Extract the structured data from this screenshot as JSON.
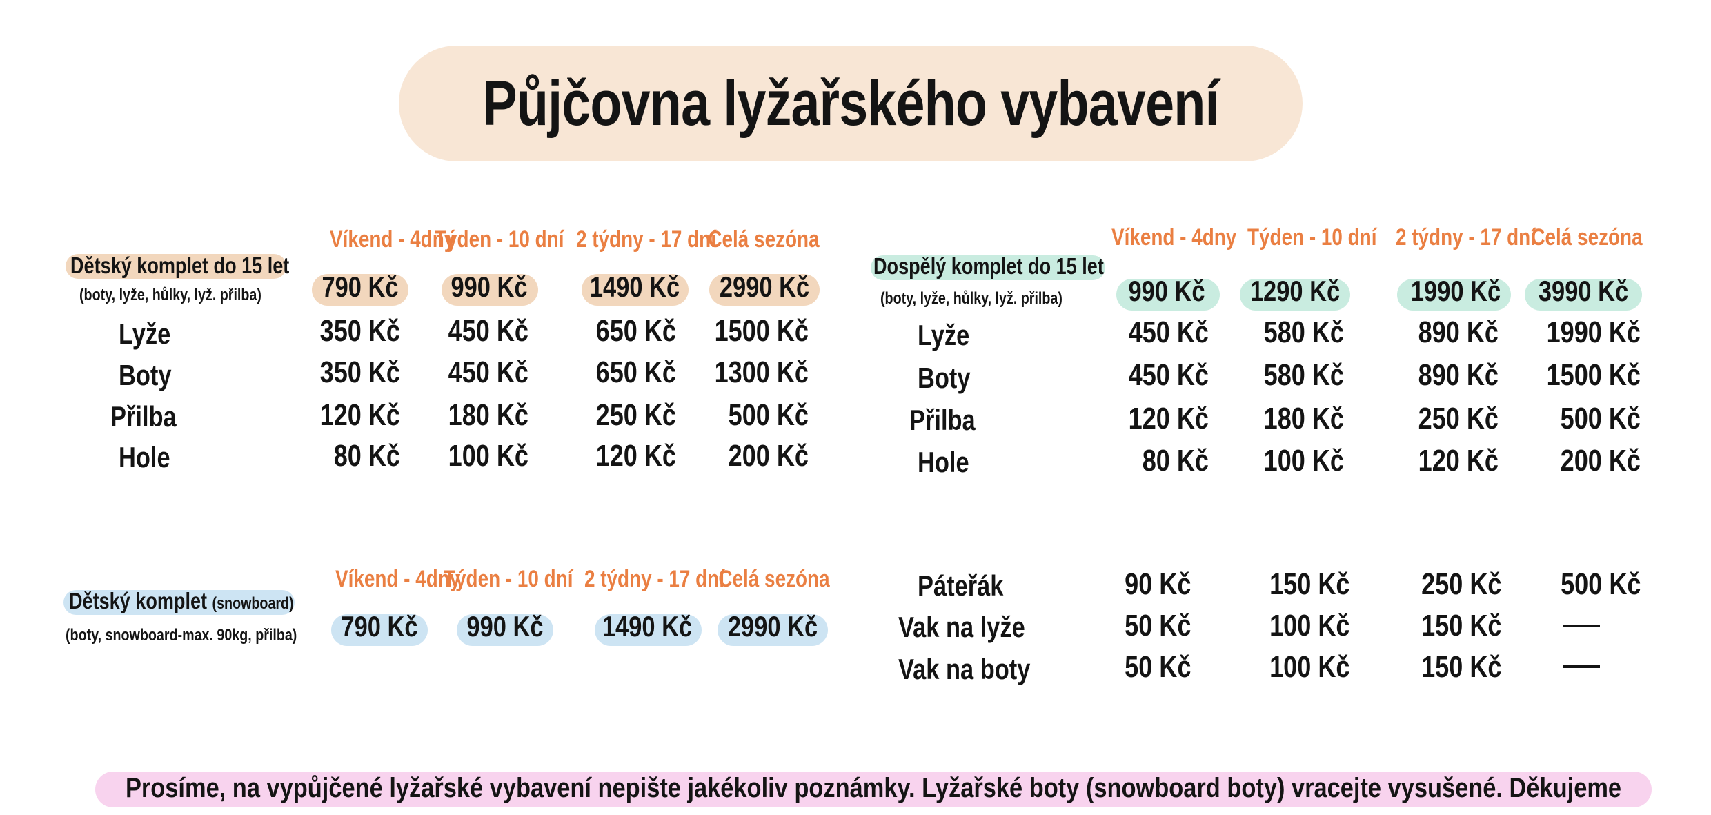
{
  "title": "Půjčovna lyžařského vybavení",
  "kids_ski": {
    "headers": [
      "Víkend - 4dny",
      "Týden - 10 dní",
      "2 týdny - 17 dní",
      "Celá sezóna"
    ],
    "label": "Dětský komplet do 15 let",
    "sublabel": "(boty, lyže, hůlky, lyž. přilba)",
    "package_prices": [
      "790 Kč",
      "990 Kč",
      "1490 Kč",
      "2990 Kč"
    ],
    "items": [
      {
        "label": "Lyže",
        "prices": [
          "350 Kč",
          "450 Kč",
          "650 Kč",
          "1500 Kč"
        ]
      },
      {
        "label": "Boty",
        "prices": [
          "350 Kč",
          "450 Kč",
          "650 Kč",
          "1300 Kč"
        ]
      },
      {
        "label": "Přilba",
        "prices": [
          "120 Kč",
          "180 Kč",
          "250 Kč",
          "500 Kč"
        ]
      },
      {
        "label": "Hole",
        "prices": [
          "80 Kč",
          "100 Kč",
          "120 Kč",
          "200 Kč"
        ]
      }
    ],
    "highlight_color": "#f2d7bd"
  },
  "adult_ski": {
    "headers": [
      "Víkend - 4dny",
      "Týden - 10 dní",
      "2 týdny - 17 dní",
      "Celá sezóna"
    ],
    "label": "Dospělý komplet do 15 let",
    "sublabel": "(boty, lyže, hůlky, lyž. přilba)",
    "package_prices": [
      "990 Kč",
      "1290 Kč",
      "1990 Kč",
      "3990 Kč"
    ],
    "items": [
      {
        "label": "Lyže",
        "prices": [
          "450 Kč",
          "580 Kč",
          "890 Kč",
          "1990 Kč"
        ]
      },
      {
        "label": "Boty",
        "prices": [
          "450 Kč",
          "580 Kč",
          "890 Kč",
          "1500 Kč"
        ]
      },
      {
        "label": "Přilba",
        "prices": [
          "120 Kč",
          "180 Kč",
          "250 Kč",
          "500 Kč"
        ]
      },
      {
        "label": "Hole",
        "prices": [
          "80 Kč",
          "100 Kč",
          "120 Kč",
          "200 Kč"
        ]
      }
    ],
    "highlight_color": "#c9ece0"
  },
  "kids_snowboard": {
    "headers": [
      "Víkend - 4dny",
      "Týden - 10 dní",
      "2 týdny - 17 dní",
      "Celá sezóna"
    ],
    "label": "Dětský komplet",
    "label_suffix": "(snowboard)",
    "sublabel": "(boty, snowboard-max. 90kg, přilba)",
    "package_prices": [
      "790 Kč",
      "990 Kč",
      "1490 Kč",
      "2990 Kč"
    ],
    "highlight_color": "#cde4f3"
  },
  "accessories": {
    "items": [
      {
        "label": "Páteřák",
        "prices": [
          "90 Kč",
          "150 Kč",
          "250 Kč",
          "500 Kč"
        ]
      },
      {
        "label": "Vak na lyže",
        "prices": [
          "50 Kč",
          "100 Kč",
          "150 Kč",
          "—"
        ]
      },
      {
        "label": "Vak na boty",
        "prices": [
          "50 Kč",
          "100 Kč",
          "150 Kč",
          "—"
        ]
      }
    ]
  },
  "footer": "Prosíme, na vypůjčené lyžařské vybavení nepište jakékoliv poznámky. Lyžařské boty (snowboard boty) vracejte vysušené. Děkujeme",
  "colors": {
    "title_bg": "#f8e6d5",
    "header_text": "#ea7f42",
    "footer_bg": "#f8d3ee"
  }
}
